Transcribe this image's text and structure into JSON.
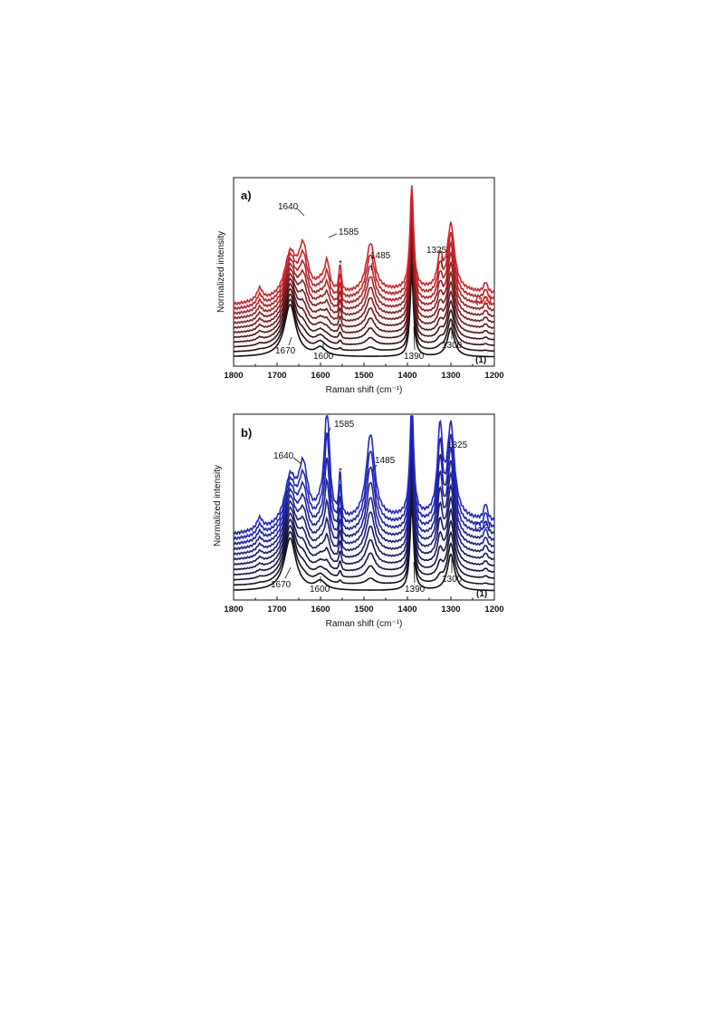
{
  "colors": {
    "panel_a": "#d4242a",
    "panel_b": "#2328c8",
    "start": "#111111",
    "text": "#111111"
  },
  "chart_data": [
    {
      "type": "line",
      "panel": "a)",
      "xlabel": "Raman shift (cm⁻¹)",
      "ylabel": "Normalized intensity",
      "xlim": [
        1800,
        1200
      ],
      "x_reversed": true,
      "y_ticks_shown": false,
      "xticks": [
        "1800",
        "1700",
        "1600",
        "1500",
        "1400",
        "1300",
        "1200"
      ],
      "xtick_values": [
        1800,
        1700,
        1600,
        1500,
        1400,
        1300,
        1200
      ],
      "grid": false,
      "series_count": 12,
      "first_series_label": "(1)",
      "last_series_label": "(12)",
      "color_gradient": [
        "#111111",
        "#d4242a"
      ],
      "peaks": {
        "1670": 0.64,
        "1640": 0.46,
        "1600": 0.1,
        "1585": 0.62,
        "1555": 0.28,
        "1485": 0.48,
        "1390": 1.0,
        "1325": 0.3,
        "1300": 0.64,
        "1740": 0.12,
        "1220": 0.1
      },
      "annotations": [
        "1640",
        "1585",
        "*",
        "1485",
        "1325",
        "1670",
        "1600",
        "1390",
        "1300"
      ]
    },
    {
      "type": "line",
      "panel": "b)",
      "xlabel": "Raman shift (cm⁻¹)",
      "ylabel": "Normalized intensity",
      "xlim": [
        1800,
        1200
      ],
      "x_reversed": true,
      "y_ticks_shown": false,
      "xticks": [
        "1800",
        "1700",
        "1600",
        "1500",
        "1400",
        "1300",
        "1200"
      ],
      "xtick_values": [
        1800,
        1700,
        1600,
        1500,
        1400,
        1300,
        1200
      ],
      "grid": false,
      "series_count": 12,
      "first_series_label": "(1)",
      "last_series_label": "(12)",
      "color_gradient": [
        "#111111",
        "#2328c8"
      ],
      "peaks": {
        "1670": 0.62,
        "1640": 0.48,
        "1600": 0.1,
        "1585": 0.95,
        "1555": 0.4,
        "1485": 0.74,
        "1390": 1.0,
        "1325": 0.74,
        "1300": 0.78,
        "1740": 0.1,
        "1220": 0.14
      },
      "annotations": [
        "1585",
        "1640",
        "*",
        "1485",
        "1325",
        "1670",
        "1600",
        "1390",
        "1300"
      ]
    }
  ]
}
